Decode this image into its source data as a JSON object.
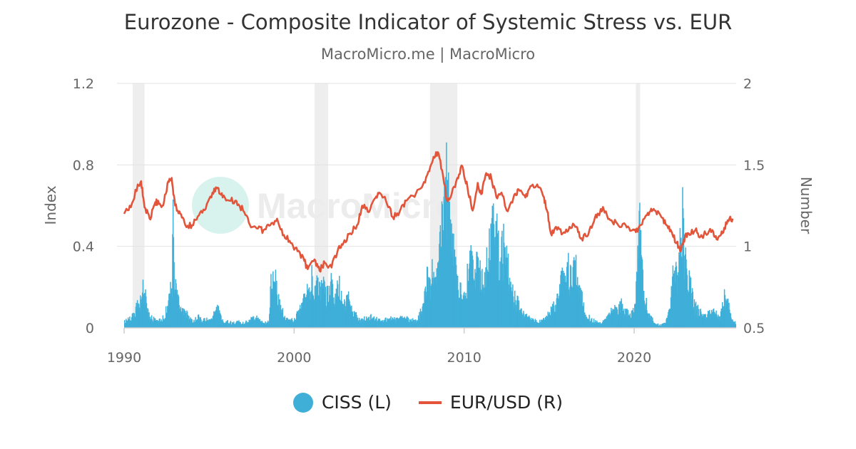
{
  "title": "Eurozone - Composite Indicator of Systemic Stress vs. EUR",
  "subtitle": "MacroMicro.me | MacroMicro",
  "watermark": "MacroMicro",
  "colors": {
    "ciss": "#3fafd8",
    "eurusd": "#e2553a",
    "recession": "#eeeeee",
    "grid": "#e3e3e3",
    "axis_text": "#666666",
    "watermark_circle": "#d8f3ee",
    "watermark_text": "#ececec"
  },
  "chart_data": {
    "type": "bar+line",
    "title": "Eurozone - Composite Indicator of Systemic Stress vs. EUR",
    "subtitle": "MacroMicro.me | MacroMicro",
    "x_axis": {
      "min": 1990,
      "max": 2026,
      "ticks": [
        1990,
        2000,
        2010,
        2020
      ]
    },
    "y_left": {
      "label": "Index",
      "min": 0,
      "max": 1.2,
      "ticks": [
        0,
        0.4,
        0.8,
        1.2
      ],
      "tick_labels": [
        "0",
        "0.4",
        "0.8",
        "1.2"
      ]
    },
    "y_right": {
      "label": "Number",
      "min": 0.5,
      "max": 2,
      "ticks": [
        0.5,
        1,
        1.5,
        2
      ],
      "tick_labels": [
        "0.5",
        "1",
        "1.5",
        "2"
      ]
    },
    "shaded_periods": [
      [
        1990.5,
        1991.2
      ],
      [
        2001.2,
        2002.0
      ],
      [
        2008.0,
        2009.6
      ],
      [
        2020.1,
        2020.35
      ]
    ],
    "series": [
      {
        "name": "CISS (L)",
        "type": "bar",
        "points": [
          [
            1990.0,
            0.04
          ],
          [
            1990.3,
            0.06
          ],
          [
            1990.6,
            0.1
          ],
          [
            1990.9,
            0.18
          ],
          [
            1991.0,
            0.14
          ],
          [
            1991.1,
            0.32
          ],
          [
            1991.3,
            0.12
          ],
          [
            1991.6,
            0.06
          ],
          [
            1991.9,
            0.05
          ],
          [
            1992.2,
            0.05
          ],
          [
            1992.4,
            0.1
          ],
          [
            1992.6,
            0.15
          ],
          [
            1992.7,
            0.4
          ],
          [
            1992.8,
            0.3
          ],
          [
            1992.85,
            0.76
          ],
          [
            1992.9,
            0.35
          ],
          [
            1993.1,
            0.18
          ],
          [
            1993.4,
            0.12
          ],
          [
            1993.7,
            0.08
          ],
          [
            1994.0,
            0.04
          ],
          [
            1994.3,
            0.07
          ],
          [
            1994.6,
            0.05
          ],
          [
            1994.9,
            0.06
          ],
          [
            1995.2,
            0.08
          ],
          [
            1995.5,
            0.12
          ],
          [
            1995.8,
            0.05
          ],
          [
            1996.1,
            0.04
          ],
          [
            1996.4,
            0.03
          ],
          [
            1996.7,
            0.04
          ],
          [
            1997.0,
            0.03
          ],
          [
            1997.3,
            0.05
          ],
          [
            1997.6,
            0.08
          ],
          [
            1997.9,
            0.06
          ],
          [
            1998.2,
            0.03
          ],
          [
            1998.5,
            0.04
          ],
          [
            1998.6,
            0.3
          ],
          [
            1998.7,
            0.34
          ],
          [
            1998.8,
            0.28
          ],
          [
            1998.9,
            0.3
          ],
          [
            1999.1,
            0.15
          ],
          [
            1999.4,
            0.08
          ],
          [
            1999.7,
            0.05
          ],
          [
            2000.0,
            0.05
          ],
          [
            2000.3,
            0.12
          ],
          [
            2000.5,
            0.18
          ],
          [
            2000.7,
            0.22
          ],
          [
            2000.9,
            0.28
          ],
          [
            2001.0,
            0.32
          ],
          [
            2001.2,
            0.2
          ],
          [
            2001.3,
            0.3
          ],
          [
            2001.5,
            0.25
          ],
          [
            2001.7,
            0.31
          ],
          [
            2001.8,
            0.2
          ],
          [
            2002.0,
            0.22
          ],
          [
            2002.2,
            0.3
          ],
          [
            2002.4,
            0.18
          ],
          [
            2002.6,
            0.28
          ],
          [
            2002.8,
            0.15
          ],
          [
            2003.0,
            0.16
          ],
          [
            2003.2,
            0.2
          ],
          [
            2003.4,
            0.1
          ],
          [
            2003.6,
            0.08
          ],
          [
            2003.9,
            0.05
          ],
          [
            2004.2,
            0.06
          ],
          [
            2004.5,
            0.07
          ],
          [
            2004.8,
            0.06
          ],
          [
            2005.1,
            0.05
          ],
          [
            2005.4,
            0.06
          ],
          [
            2005.7,
            0.06
          ],
          [
            2006.0,
            0.05
          ],
          [
            2006.3,
            0.07
          ],
          [
            2006.6,
            0.06
          ],
          [
            2006.9,
            0.05
          ],
          [
            2007.2,
            0.04
          ],
          [
            2007.6,
            0.15
          ],
          [
            2007.8,
            0.32
          ],
          [
            2008.0,
            0.3
          ],
          [
            2008.2,
            0.4
          ],
          [
            2008.4,
            0.35
          ],
          [
            2008.6,
            0.55
          ],
          [
            2008.75,
            0.85
          ],
          [
            2008.85,
            0.93
          ],
          [
            2008.95,
            0.92
          ],
          [
            2009.1,
            0.75
          ],
          [
            2009.3,
            0.55
          ],
          [
            2009.5,
            0.4
          ],
          [
            2009.7,
            0.25
          ],
          [
            2009.9,
            0.22
          ],
          [
            2010.1,
            0.28
          ],
          [
            2010.3,
            0.45
          ],
          [
            2010.5,
            0.35
          ],
          [
            2010.7,
            0.42
          ],
          [
            2010.9,
            0.36
          ],
          [
            2011.1,
            0.3
          ],
          [
            2011.3,
            0.4
          ],
          [
            2011.5,
            0.58
          ],
          [
            2011.7,
            0.68
          ],
          [
            2011.9,
            0.6
          ],
          [
            2012.1,
            0.45
          ],
          [
            2012.3,
            0.52
          ],
          [
            2012.5,
            0.4
          ],
          [
            2012.7,
            0.3
          ],
          [
            2012.9,
            0.2
          ],
          [
            2013.2,
            0.15
          ],
          [
            2013.5,
            0.08
          ],
          [
            2013.8,
            0.06
          ],
          [
            2014.1,
            0.05
          ],
          [
            2014.4,
            0.04
          ],
          [
            2014.7,
            0.05
          ],
          [
            2015.0,
            0.1
          ],
          [
            2015.3,
            0.15
          ],
          [
            2015.5,
            0.22
          ],
          [
            2015.7,
            0.3
          ],
          [
            2015.9,
            0.28
          ],
          [
            2016.1,
            0.38
          ],
          [
            2016.3,
            0.3
          ],
          [
            2016.5,
            0.45
          ],
          [
            2016.7,
            0.25
          ],
          [
            2016.9,
            0.2
          ],
          [
            2017.1,
            0.08
          ],
          [
            2017.4,
            0.06
          ],
          [
            2017.7,
            0.04
          ],
          [
            2018.0,
            0.03
          ],
          [
            2018.3,
            0.05
          ],
          [
            2018.6,
            0.1
          ],
          [
            2018.9,
            0.12
          ],
          [
            2019.2,
            0.15
          ],
          [
            2019.5,
            0.1
          ],
          [
            2019.8,
            0.08
          ],
          [
            2020.0,
            0.15
          ],
          [
            2020.2,
            0.52
          ],
          [
            2020.3,
            0.68
          ],
          [
            2020.4,
            0.4
          ],
          [
            2020.6,
            0.2
          ],
          [
            2020.9,
            0.08
          ],
          [
            2021.2,
            0.03
          ],
          [
            2021.5,
            0.02
          ],
          [
            2021.8,
            0.03
          ],
          [
            2022.1,
            0.12
          ],
          [
            2022.2,
            0.35
          ],
          [
            2022.4,
            0.32
          ],
          [
            2022.6,
            0.4
          ],
          [
            2022.7,
            0.55
          ],
          [
            2022.8,
            0.73
          ],
          [
            2022.9,
            0.58
          ],
          [
            2023.1,
            0.35
          ],
          [
            2023.3,
            0.25
          ],
          [
            2023.5,
            0.15
          ],
          [
            2023.8,
            0.1
          ],
          [
            2024.1,
            0.08
          ],
          [
            2024.4,
            0.09
          ],
          [
            2024.7,
            0.11
          ],
          [
            2025.0,
            0.06
          ],
          [
            2025.3,
            0.2
          ],
          [
            2025.5,
            0.15
          ],
          [
            2025.7,
            0.05
          ],
          [
            2025.9,
            0.04
          ]
        ]
      },
      {
        "name": "EUR/USD (R)",
        "type": "line",
        "points": [
          [
            1990.0,
            1.2
          ],
          [
            1990.4,
            1.24
          ],
          [
            1990.8,
            1.38
          ],
          [
            1991.0,
            1.4
          ],
          [
            1991.2,
            1.24
          ],
          [
            1991.5,
            1.17
          ],
          [
            1991.8,
            1.26
          ],
          [
            1992.0,
            1.28
          ],
          [
            1992.3,
            1.25
          ],
          [
            1992.6,
            1.4
          ],
          [
            1992.8,
            1.42
          ],
          [
            1993.0,
            1.25
          ],
          [
            1993.3,
            1.2
          ],
          [
            1993.6,
            1.13
          ],
          [
            1994.0,
            1.13
          ],
          [
            1994.4,
            1.19
          ],
          [
            1994.8,
            1.23
          ],
          [
            1995.2,
            1.33
          ],
          [
            1995.5,
            1.36
          ],
          [
            1995.8,
            1.3
          ],
          [
            1996.2,
            1.28
          ],
          [
            1996.6,
            1.28
          ],
          [
            1997.0,
            1.22
          ],
          [
            1997.4,
            1.13
          ],
          [
            1997.8,
            1.11
          ],
          [
            1998.2,
            1.1
          ],
          [
            1998.6,
            1.13
          ],
          [
            1999.0,
            1.17
          ],
          [
            1999.4,
            1.07
          ],
          [
            1999.8,
            1.02
          ],
          [
            2000.2,
            0.97
          ],
          [
            2000.6,
            0.91
          ],
          [
            2000.8,
            0.86
          ],
          [
            2001.2,
            0.92
          ],
          [
            2001.5,
            0.85
          ],
          [
            2001.8,
            0.9
          ],
          [
            2002.2,
            0.87
          ],
          [
            2002.6,
            0.99
          ],
          [
            2002.9,
            1.02
          ],
          [
            2003.3,
            1.08
          ],
          [
            2003.7,
            1.13
          ],
          [
            2004.0,
            1.25
          ],
          [
            2004.4,
            1.21
          ],
          [
            2004.8,
            1.3
          ],
          [
            2005.0,
            1.33
          ],
          [
            2005.4,
            1.28
          ],
          [
            2005.8,
            1.18
          ],
          [
            2006.2,
            1.21
          ],
          [
            2006.6,
            1.28
          ],
          [
            2007.0,
            1.31
          ],
          [
            2007.5,
            1.36
          ],
          [
            2007.9,
            1.46
          ],
          [
            2008.2,
            1.55
          ],
          [
            2008.5,
            1.57
          ],
          [
            2008.8,
            1.4
          ],
          [
            2009.0,
            1.28
          ],
          [
            2009.2,
            1.3
          ],
          [
            2009.6,
            1.42
          ],
          [
            2009.9,
            1.49
          ],
          [
            2010.2,
            1.36
          ],
          [
            2010.5,
            1.22
          ],
          [
            2010.8,
            1.39
          ],
          [
            2011.0,
            1.32
          ],
          [
            2011.3,
            1.45
          ],
          [
            2011.6,
            1.42
          ],
          [
            2011.9,
            1.3
          ],
          [
            2012.2,
            1.33
          ],
          [
            2012.5,
            1.22
          ],
          [
            2012.9,
            1.3
          ],
          [
            2013.2,
            1.35
          ],
          [
            2013.6,
            1.3
          ],
          [
            2013.9,
            1.37
          ],
          [
            2014.3,
            1.38
          ],
          [
            2014.7,
            1.3
          ],
          [
            2014.9,
            1.21
          ],
          [
            2015.1,
            1.08
          ],
          [
            2015.4,
            1.12
          ],
          [
            2015.8,
            1.08
          ],
          [
            2016.2,
            1.12
          ],
          [
            2016.6,
            1.12
          ],
          [
            2016.9,
            1.05
          ],
          [
            2017.3,
            1.07
          ],
          [
            2017.7,
            1.18
          ],
          [
            2018.0,
            1.21
          ],
          [
            2018.2,
            1.23
          ],
          [
            2018.6,
            1.16
          ],
          [
            2019.0,
            1.14
          ],
          [
            2019.5,
            1.13
          ],
          [
            2019.9,
            1.1
          ],
          [
            2020.2,
            1.09
          ],
          [
            2020.6,
            1.17
          ],
          [
            2020.9,
            1.21
          ],
          [
            2021.2,
            1.22
          ],
          [
            2021.6,
            1.18
          ],
          [
            2021.9,
            1.13
          ],
          [
            2022.2,
            1.09
          ],
          [
            2022.5,
            1.02
          ],
          [
            2022.75,
            0.97
          ],
          [
            2022.9,
            1.04
          ],
          [
            2023.2,
            1.08
          ],
          [
            2023.6,
            1.1
          ],
          [
            2023.9,
            1.06
          ],
          [
            2024.2,
            1.08
          ],
          [
            2024.6,
            1.1
          ],
          [
            2024.9,
            1.04
          ],
          [
            2025.2,
            1.08
          ],
          [
            2025.5,
            1.16
          ],
          [
            2025.8,
            1.17
          ]
        ]
      }
    ],
    "legend": [
      "CISS (L)",
      "EUR/USD (R)"
    ],
    "legend_position": "bottom",
    "grid": true
  }
}
